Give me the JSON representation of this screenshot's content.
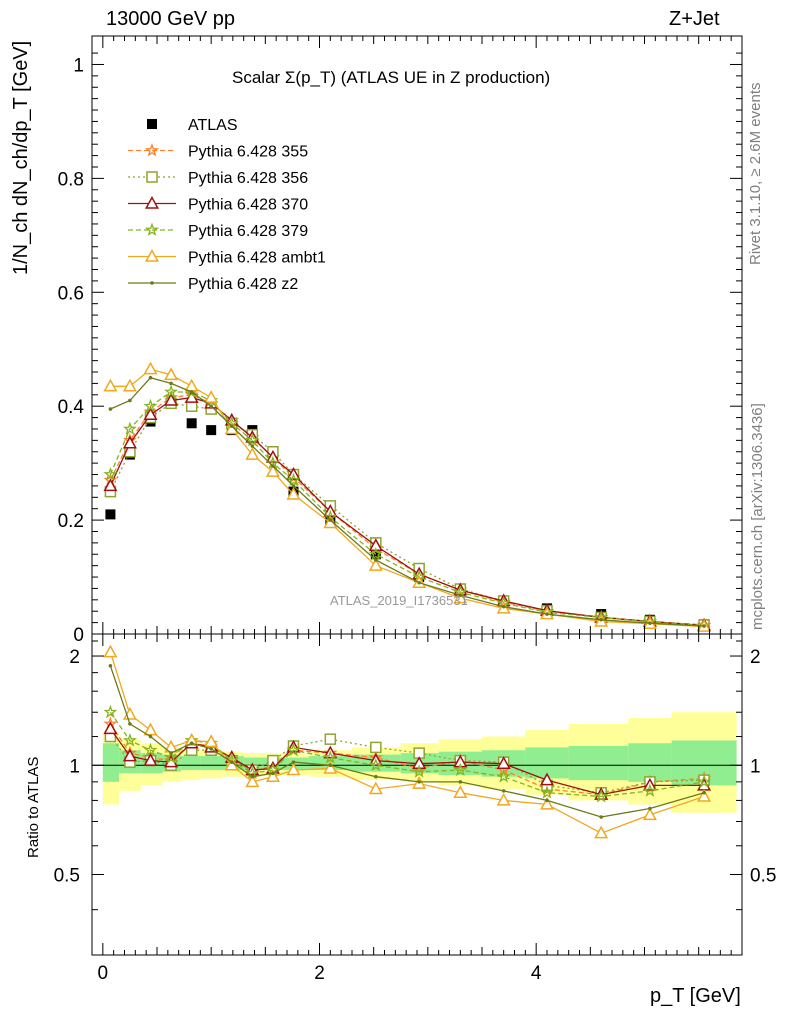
{
  "header": {
    "energy_label": "13000 GeV pp",
    "process_label": "Z+Jet",
    "rivet_label": "Rivet 3.1.10, ≥ 2.6M events",
    "mcplots_label": "mcplots.cern.ch [arXiv:1306.3436]",
    "analysis_watermark": "ATLAS_2019_I1736531"
  },
  "chart_data": [
    {
      "type": "scatter",
      "panel": "main",
      "title": "Scalar Σ(p_T) (ATLAS UE in Z production)",
      "ylabel": "1/N_ch dN_ch/dp_T [GeV]",
      "xlabel": "p_T [GeV]",
      "xlim": [
        -0.1,
        5.9
      ],
      "ylim": [
        0,
        1.05
      ],
      "xticks": [
        0,
        2,
        4
      ],
      "yticks": [
        0,
        0.2,
        0.4,
        0.6,
        0.8,
        1
      ],
      "ytick_labels": [
        "0",
        "0.2",
        "0.4",
        "0.6",
        "0.8",
        "1"
      ],
      "legend_position": "top-left",
      "x": [
        0.07,
        0.25,
        0.44,
        0.63,
        0.82,
        1.0,
        1.19,
        1.38,
        1.57,
        1.76,
        2.1,
        2.52,
        2.92,
        3.3,
        3.7,
        4.1,
        4.6,
        5.05,
        5.55
      ],
      "series": [
        {
          "name": "ATLAS",
          "color": "#000000",
          "marker": "square",
          "dash": "none",
          "values": [
            0.21,
            0.315,
            0.373,
            0.405,
            0.37,
            0.358,
            0.358,
            0.358,
            0.31,
            0.25,
            0.2,
            0.14,
            0.1,
            0.075,
            0.057,
            0.045,
            0.035,
            0.025,
            0.017
          ]
        },
        {
          "name": "Pythia 6.428 355",
          "color": "#ff7f2a",
          "marker": "star",
          "dash": "5,3",
          "values": [
            0.27,
            0.34,
            0.39,
            0.415,
            0.42,
            0.405,
            0.375,
            0.345,
            0.31,
            0.275,
            0.215,
            0.15,
            0.105,
            0.077,
            0.056,
            0.04,
            0.03,
            0.022,
            0.016
          ]
        },
        {
          "name": "Pythia 6.428 356",
          "color": "#8ea42f",
          "marker": "opensquare",
          "dash": "2,3",
          "values": [
            0.25,
            0.32,
            0.38,
            0.405,
            0.4,
            0.395,
            0.37,
            0.35,
            0.32,
            0.28,
            0.225,
            0.16,
            0.115,
            0.079,
            0.058,
            0.041,
            0.029,
            0.022,
            0.016
          ]
        },
        {
          "name": "Pythia 6.428 370",
          "color": "#a01010",
          "marker": "opentriangle",
          "dash": "none",
          "values": [
            0.26,
            0.335,
            0.385,
            0.41,
            0.415,
            0.405,
            0.375,
            0.345,
            0.31,
            0.28,
            0.215,
            0.155,
            0.105,
            0.077,
            0.058,
            0.041,
            0.029,
            0.022,
            0.015
          ]
        },
        {
          "name": "Pythia 6.428 379",
          "color": "#86b31e",
          "marker": "star",
          "dash": "5,3",
          "values": [
            0.28,
            0.36,
            0.4,
            0.425,
            0.425,
            0.41,
            0.37,
            0.34,
            0.3,
            0.27,
            0.205,
            0.14,
            0.1,
            0.073,
            0.054,
            0.038,
            0.029,
            0.021,
            0.015
          ]
        },
        {
          "name": "Pythia 6.428 ambt1",
          "color": "#f0a81e",
          "marker": "opentriangle",
          "dash": "none",
          "values": [
            0.435,
            0.435,
            0.465,
            0.455,
            0.435,
            0.415,
            0.36,
            0.315,
            0.285,
            0.245,
            0.195,
            0.12,
            0.09,
            0.063,
            0.045,
            0.035,
            0.022,
            0.018,
            0.013
          ]
        },
        {
          "name": "Pythia 6.428 z2",
          "color": "#6b7a1a",
          "marker": "dot",
          "dash": "none",
          "values": [
            0.395,
            0.41,
            0.45,
            0.44,
            0.425,
            0.4,
            0.365,
            0.33,
            0.295,
            0.26,
            0.2,
            0.13,
            0.09,
            0.068,
            0.048,
            0.035,
            0.025,
            0.019,
            0.014
          ]
        }
      ]
    },
    {
      "type": "line",
      "panel": "ratio",
      "ylabel": "Ratio to ATLAS",
      "xlim": [
        -0.1,
        5.9
      ],
      "ylim": [
        0.3,
        2.3
      ],
      "yticks": [
        0.5,
        1,
        2
      ],
      "ytick_labels": [
        "0.5",
        "1",
        "2"
      ],
      "x": [
        0.07,
        0.25,
        0.44,
        0.63,
        0.82,
        1.0,
        1.19,
        1.38,
        1.57,
        1.76,
        2.1,
        2.52,
        2.92,
        3.3,
        3.7,
        4.1,
        4.6,
        5.05,
        5.55
      ],
      "bands": {
        "x_edges": [
          0.0,
          0.15,
          0.35,
          0.55,
          0.72,
          0.9,
          1.1,
          1.3,
          1.47,
          1.66,
          1.9,
          2.3,
          2.75,
          3.1,
          3.5,
          3.9,
          4.3,
          4.85,
          5.25,
          5.85
        ],
        "inner_color": "#90ee90",
        "inner": [
          [
            0.9,
            1.15
          ],
          [
            0.95,
            1.1
          ],
          [
            0.95,
            1.08
          ],
          [
            0.96,
            1.07
          ],
          [
            0.97,
            1.06
          ],
          [
            0.97,
            1.06
          ],
          [
            0.97,
            1.06
          ],
          [
            0.97,
            1.05
          ],
          [
            0.97,
            1.05
          ],
          [
            0.97,
            1.05
          ],
          [
            0.97,
            1.06
          ],
          [
            0.96,
            1.07
          ],
          [
            0.95,
            1.08
          ],
          [
            0.94,
            1.09
          ],
          [
            0.93,
            1.1
          ],
          [
            0.92,
            1.12
          ],
          [
            0.91,
            1.13
          ],
          [
            0.9,
            1.15
          ],
          [
            0.88,
            1.17
          ]
        ],
        "outer_color": "#ffff99",
        "outer": [
          [
            0.78,
            1.22
          ],
          [
            0.85,
            1.18
          ],
          [
            0.88,
            1.15
          ],
          [
            0.9,
            1.12
          ],
          [
            0.91,
            1.11
          ],
          [
            0.92,
            1.1
          ],
          [
            0.93,
            1.09
          ],
          [
            0.93,
            1.08
          ],
          [
            0.94,
            1.08
          ],
          [
            0.94,
            1.08
          ],
          [
            0.93,
            1.1
          ],
          [
            0.91,
            1.12
          ],
          [
            0.9,
            1.15
          ],
          [
            0.88,
            1.18
          ],
          [
            0.86,
            1.2
          ],
          [
            0.83,
            1.25
          ],
          [
            0.8,
            1.3
          ],
          [
            0.78,
            1.35
          ],
          [
            0.74,
            1.4
          ]
        ]
      },
      "series": [
        {
          "name": "Pythia 6.428 355",
          "values": [
            1.3,
            1.08,
            1.05,
            1.03,
            1.15,
            1.13,
            1.05,
            0.96,
            1.0,
            1.1,
            1.08,
            1.05,
            0.98,
            1.03,
            0.97,
            0.86,
            0.83,
            0.9,
            0.92
          ]
        },
        {
          "name": "Pythia 6.428 356",
          "values": [
            1.2,
            1.02,
            1.03,
            1.0,
            1.1,
            1.1,
            1.03,
            0.97,
            1.03,
            1.13,
            1.18,
            1.12,
            1.08,
            1.03,
            1.02,
            0.88,
            0.84,
            0.9,
            0.91
          ]
        },
        {
          "name": "Pythia 6.428 370",
          "values": [
            1.26,
            1.06,
            1.03,
            1.02,
            1.15,
            1.12,
            1.05,
            0.97,
            0.98,
            1.12,
            1.08,
            1.03,
            1.01,
            1.02,
            1.01,
            0.91,
            0.83,
            0.88,
            0.88
          ]
        },
        {
          "name": "Pythia 6.428 379",
          "values": [
            1.4,
            1.17,
            1.1,
            1.05,
            1.17,
            1.15,
            1.03,
            0.95,
            0.97,
            1.1,
            1.05,
            1.0,
            0.96,
            0.97,
            0.93,
            0.84,
            0.82,
            0.85,
            0.9
          ]
        },
        {
          "name": "Pythia 6.428 ambt1",
          "values": [
            2.05,
            1.38,
            1.25,
            1.12,
            1.17,
            1.16,
            1.0,
            0.9,
            0.93,
            0.97,
            0.98,
            0.86,
            0.89,
            0.84,
            0.8,
            0.78,
            0.65,
            0.73,
            0.82
          ]
        },
        {
          "name": "Pythia 6.428 z2",
          "values": [
            1.88,
            1.3,
            1.2,
            1.08,
            1.15,
            1.11,
            1.02,
            0.93,
            0.95,
            1.02,
            1.0,
            0.93,
            0.9,
            0.9,
            0.85,
            0.8,
            0.72,
            0.76,
            0.84
          ]
        }
      ]
    }
  ]
}
